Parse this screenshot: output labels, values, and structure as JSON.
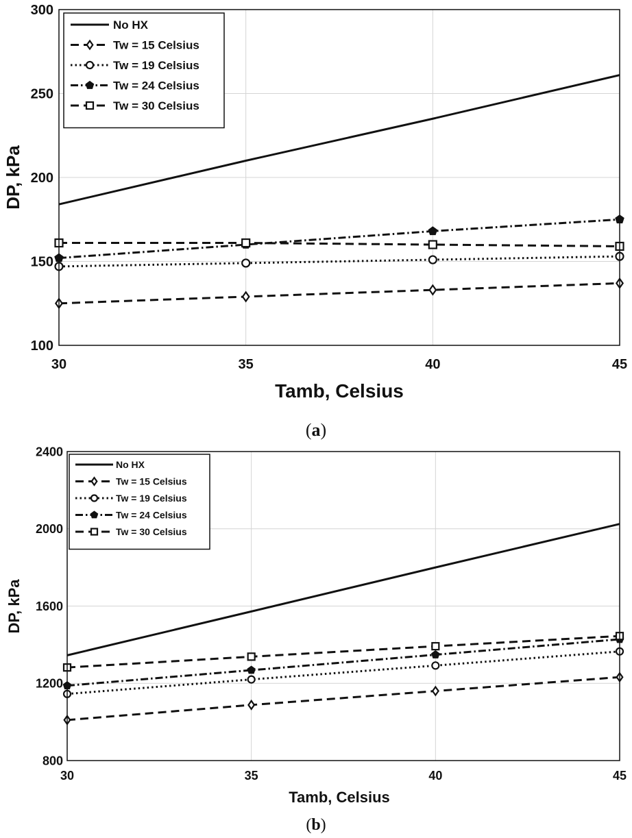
{
  "chart_data": [
    {
      "type": "line",
      "caption": "(a)",
      "xlabel": "Tamb, Celsius",
      "ylabel": "DP, kPa",
      "x": [
        30,
        35,
        40,
        45
      ],
      "xlim": [
        30,
        45
      ],
      "ylim": [
        100,
        300
      ],
      "xticks": [
        30,
        35,
        40,
        45
      ],
      "yticks": [
        100,
        150,
        200,
        250,
        300
      ],
      "grid": true,
      "legend_position": "top-left",
      "series": [
        {
          "name": "No HX",
          "values": [
            184,
            210,
            235,
            261
          ],
          "style": "solid",
          "marker": "none"
        },
        {
          "name": "Tw = 15 Celsius",
          "values": [
            125,
            129,
            133,
            137
          ],
          "style": "dashed",
          "marker": "diamond"
        },
        {
          "name": "Tw = 19 Celsius",
          "values": [
            147,
            149,
            151,
            153
          ],
          "style": "dotted",
          "marker": "circle"
        },
        {
          "name": "Tw = 24 Celsius",
          "values": [
            152,
            160,
            168,
            175
          ],
          "style": "dashdot",
          "marker": "pentagon"
        },
        {
          "name": "Tw = 30 Celsius",
          "values": [
            161,
            161,
            160,
            159
          ],
          "style": "dashed",
          "marker": "square"
        }
      ]
    },
    {
      "type": "line",
      "caption": "(b)",
      "xlabel": "Tamb, Celsius",
      "ylabel": "DP, kPa",
      "x": [
        30,
        35,
        40,
        45
      ],
      "xlim": [
        30,
        45
      ],
      "ylim": [
        800,
        2400
      ],
      "xticks": [
        30,
        35,
        40,
        45
      ],
      "yticks": [
        800,
        1200,
        1600,
        2000,
        2400
      ],
      "grid": true,
      "legend_position": "top-left",
      "series": [
        {
          "name": "No HX",
          "values": [
            1345,
            1572,
            1800,
            2025
          ],
          "style": "solid",
          "marker": "none"
        },
        {
          "name": "Tw = 15 Celsius",
          "values": [
            1010,
            1088,
            1160,
            1232
          ],
          "style": "dashed",
          "marker": "diamond"
        },
        {
          "name": "Tw = 19 Celsius",
          "values": [
            1145,
            1220,
            1292,
            1365
          ],
          "style": "dotted",
          "marker": "circle"
        },
        {
          "name": "Tw = 24 Celsius",
          "values": [
            1188,
            1268,
            1348,
            1428
          ],
          "style": "dashdot",
          "marker": "pentagon"
        },
        {
          "name": "Tw = 30 Celsius",
          "values": [
            1282,
            1338,
            1392,
            1445
          ],
          "style": "dashed",
          "marker": "square"
        }
      ]
    }
  ]
}
